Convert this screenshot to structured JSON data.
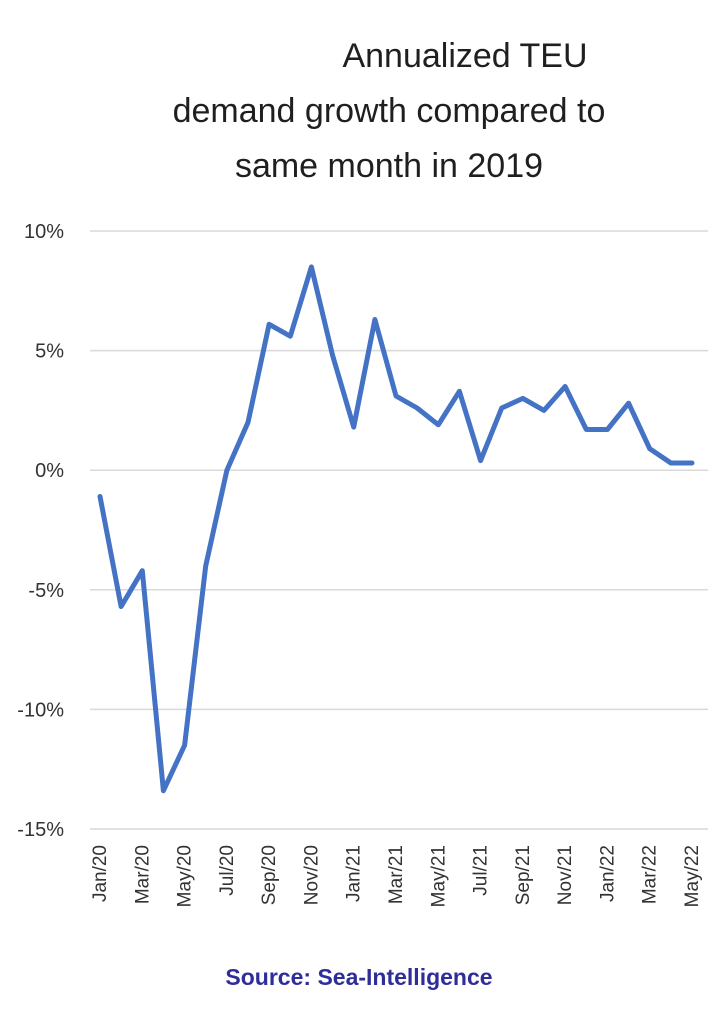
{
  "chart_data": {
    "type": "line",
    "title_lines": [
      "Annualized TEU",
      "demand growth compared to",
      "same month in 2019"
    ],
    "x": [
      "Jan/20",
      "Feb/20",
      "Mar/20",
      "Apr/20",
      "May/20",
      "Jun/20",
      "Jul/20",
      "Aug/20",
      "Sep/20",
      "Oct/20",
      "Nov/20",
      "Dec/20",
      "Jan/21",
      "Feb/21",
      "Mar/21",
      "Apr/21",
      "May/21",
      "Jun/21",
      "Jul/21",
      "Aug/21",
      "Sep/21",
      "Oct/21",
      "Nov/21",
      "Dec/21",
      "Jan/22",
      "Feb/22",
      "Mar/22",
      "Apr/22",
      "May/22"
    ],
    "x_tick_labels": [
      "Jan/20",
      "Mar/20",
      "May/20",
      "Jul/20",
      "Sep/20",
      "Nov/20",
      "Jan/21",
      "Mar/21",
      "May/21",
      "Jul/21",
      "Sep/21",
      "Nov/21",
      "Jan/22",
      "Mar/22",
      "May/22"
    ],
    "series": [
      {
        "values": [
          -1.1,
          -5.7,
          -4.2,
          -13.4,
          -11.5,
          -4.0,
          0.0,
          2.0,
          6.1,
          5.6,
          8.5,
          4.8,
          1.8,
          6.3,
          3.1,
          2.6,
          1.9,
          3.3,
          0.4,
          2.6,
          3.0,
          2.5,
          3.5,
          1.7,
          1.7,
          2.8,
          0.9,
          0.3,
          0.3
        ]
      }
    ],
    "ylim": [
      -15,
      10
    ],
    "y_ticks": [
      10,
      5,
      0,
      -5,
      -10,
      -15
    ],
    "y_tick_labels": [
      "10%",
      "5%",
      "0%",
      "-5%",
      "-10%",
      "-15%"
    ],
    "grid": true,
    "line_color": "#4472c4",
    "grid_color": "#d9d9d9"
  },
  "source": "Source: Sea-Intelligence"
}
